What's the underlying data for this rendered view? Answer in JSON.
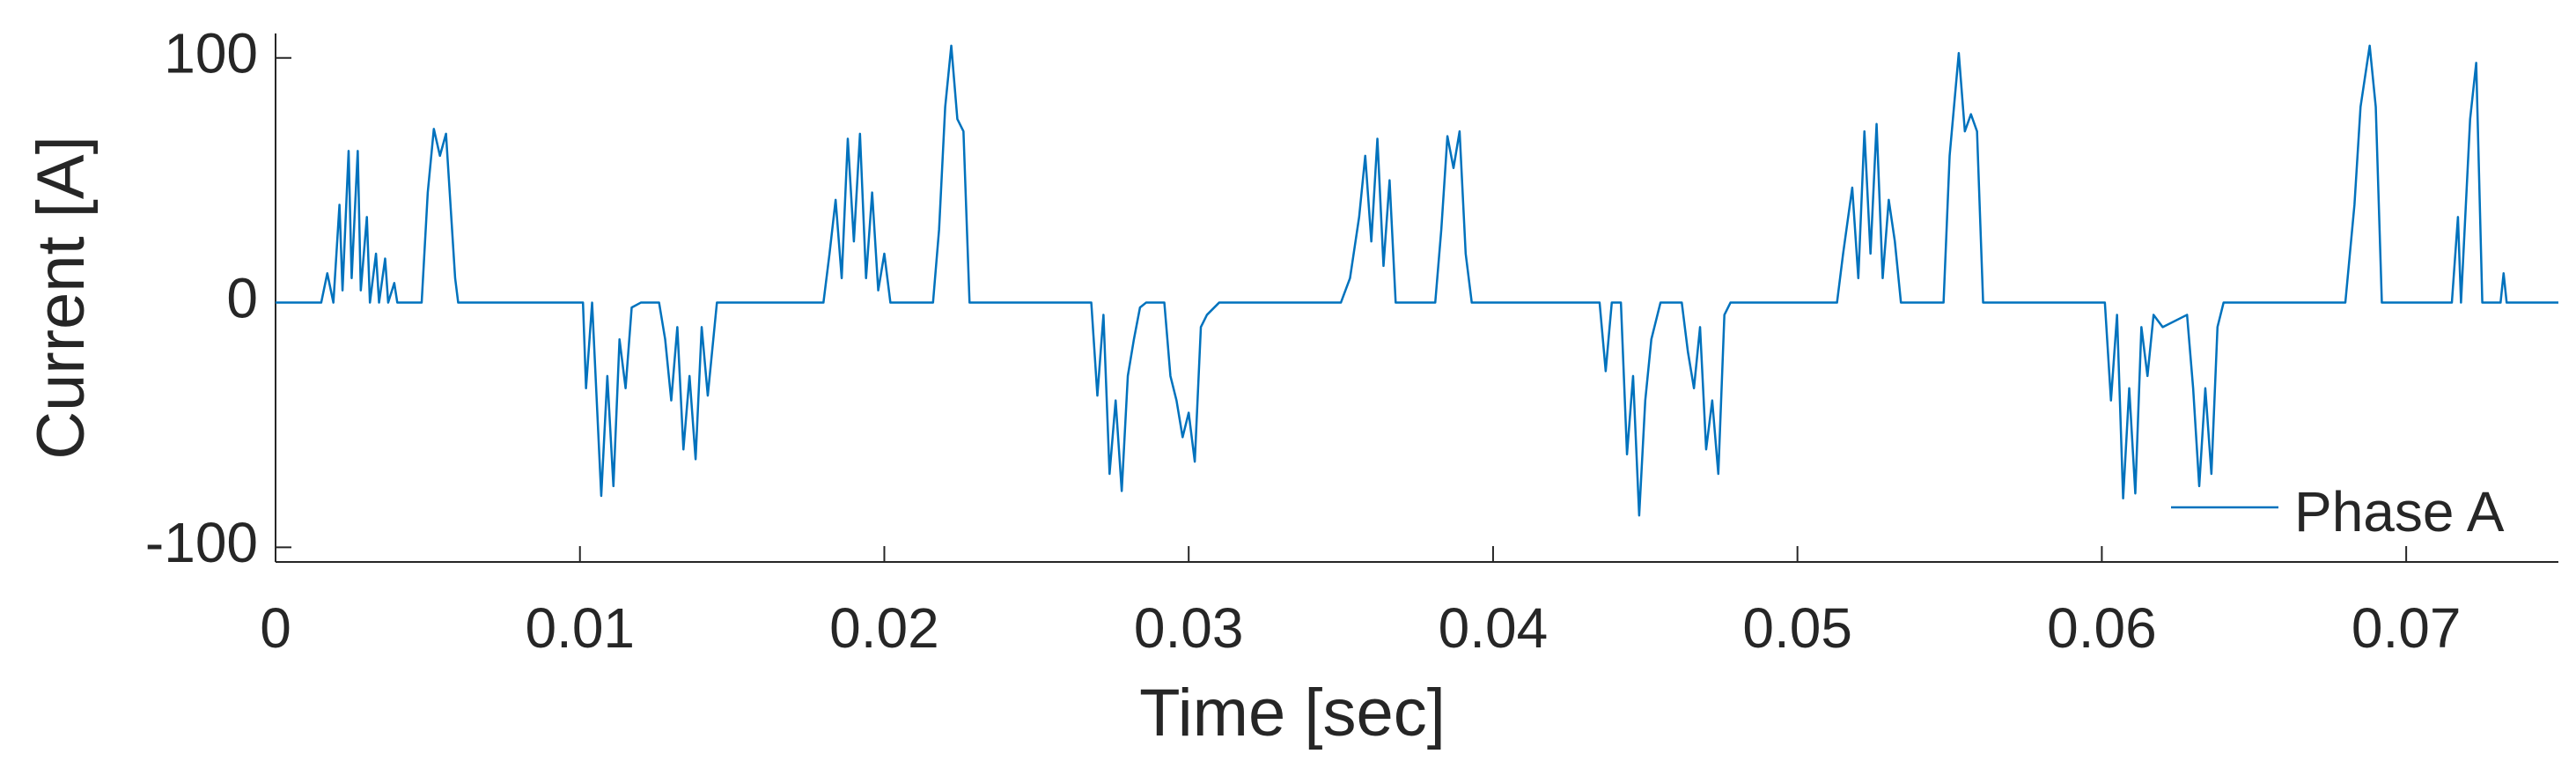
{
  "chart_data": {
    "type": "line",
    "xlabel": "Time [sec]",
    "ylabel": "Current [A]",
    "x": [
      0,
      0.0015,
      0.0017,
      0.0019,
      0.0021,
      0.0022,
      0.0024,
      0.0025,
      0.0027,
      0.0028,
      0.003,
      0.0031,
      0.0033,
      0.0034,
      0.0036,
      0.0037,
      0.0039,
      0.004,
      0.0048,
      0.005,
      0.0052,
      0.0054,
      0.0056,
      0.0059,
      0.006,
      0.0101,
      0.0102,
      0.0104,
      0.0107,
      0.0109,
      0.0111,
      0.0113,
      0.0115,
      0.0117,
      0.012,
      0.0126,
      0.0128,
      0.013,
      0.0132,
      0.0134,
      0.0136,
      0.0138,
      0.014,
      0.0142,
      0.0145,
      0.018,
      0.0182,
      0.0184,
      0.0186,
      0.0188,
      0.019,
      0.0192,
      0.0194,
      0.0196,
      0.0198,
      0.02,
      0.0202,
      0.0216,
      0.0218,
      0.022,
      0.0222,
      0.0224,
      0.0226,
      0.0228,
      0.0268,
      0.027,
      0.0272,
      0.0274,
      0.0276,
      0.0278,
      0.028,
      0.0282,
      0.0284,
      0.0286,
      0.0292,
      0.0294,
      0.0296,
      0.0298,
      0.03,
      0.0302,
      0.0304,
      0.0306,
      0.031,
      0.035,
      0.0353,
      0.0356,
      0.0358,
      0.036,
      0.0362,
      0.0364,
      0.0366,
      0.0368,
      0.0381,
      0.0383,
      0.0385,
      0.0387,
      0.0389,
      0.0391,
      0.0393,
      0.0435,
      0.0437,
      0.0439,
      0.0442,
      0.0444,
      0.0446,
      0.0448,
      0.045,
      0.0452,
      0.0455,
      0.0462,
      0.0464,
      0.0466,
      0.0468,
      0.047,
      0.0472,
      0.0474,
      0.0476,
      0.0478,
      0.0513,
      0.0515,
      0.0518,
      0.052,
      0.0522,
      0.0524,
      0.0526,
      0.0528,
      0.053,
      0.0532,
      0.0534,
      0.0548,
      0.055,
      0.0553,
      0.0555,
      0.0557,
      0.0559,
      0.0561,
      0.0601,
      0.0603,
      0.0605,
      0.0607,
      0.0609,
      0.0611,
      0.0613,
      0.0615,
      0.0617,
      0.062,
      0.0628,
      0.063,
      0.0632,
      0.0634,
      0.0636,
      0.0638,
      0.064,
      0.068,
      0.0683,
      0.0685,
      0.0688,
      0.069,
      0.0692,
      0.0715,
      0.0717,
      0.0718,
      0.0721,
      0.0723,
      0.0725,
      0.0731,
      0.0732,
      0.0733,
      0.075
    ],
    "series": [
      {
        "name": "Phase A",
        "color": "#0072bd",
        "values": [
          0,
          0,
          12,
          0,
          40,
          5,
          62,
          10,
          62,
          5,
          35,
          0,
          20,
          0,
          18,
          0,
          8,
          0,
          0,
          45,
          71,
          60,
          69,
          10,
          0,
          0,
          -35,
          0,
          -79,
          -30,
          -75,
          -15,
          -35,
          -2,
          0,
          0,
          -15,
          -40,
          -10,
          -60,
          -30,
          -64,
          -10,
          -38,
          0,
          0,
          20,
          42,
          10,
          67,
          25,
          69,
          10,
          45,
          5,
          20,
          0,
          0,
          30,
          80,
          105,
          75,
          70,
          0,
          0,
          -38,
          -5,
          -70,
          -40,
          -77,
          -30,
          -15,
          -2,
          0,
          0,
          -30,
          -40,
          -55,
          -45,
          -65,
          -10,
          -5,
          0,
          0,
          10,
          35,
          60,
          25,
          67,
          15,
          50,
          0,
          0,
          30,
          68,
          55,
          70,
          20,
          0,
          0,
          -28,
          0,
          0,
          -62,
          -30,
          -87,
          -40,
          -15,
          0,
          0,
          -20,
          -35,
          -10,
          -60,
          -40,
          -70,
          -5,
          0,
          0,
          20,
          47,
          10,
          70,
          20,
          73,
          10,
          42,
          25,
          0,
          0,
          60,
          102,
          70,
          77,
          70,
          0,
          0,
          -40,
          -5,
          -80,
          -35,
          -78,
          -10,
          -30,
          -5,
          -10,
          -5,
          -35,
          -75,
          -35,
          -70,
          -10,
          0,
          0,
          40,
          80,
          105,
          80,
          0,
          0,
          35,
          0,
          75,
          98,
          0,
          0,
          12,
          0,
          0
        ]
      }
    ],
    "xlim": [
      0,
      0.075
    ],
    "xticks": [
      0,
      0.01,
      0.02,
      0.03,
      0.04,
      0.05,
      0.06,
      0.07
    ],
    "ylim": [
      -106,
      110
    ],
    "yticks": [
      -100,
      0,
      100
    ],
    "grid": false,
    "legend": "southeast"
  }
}
